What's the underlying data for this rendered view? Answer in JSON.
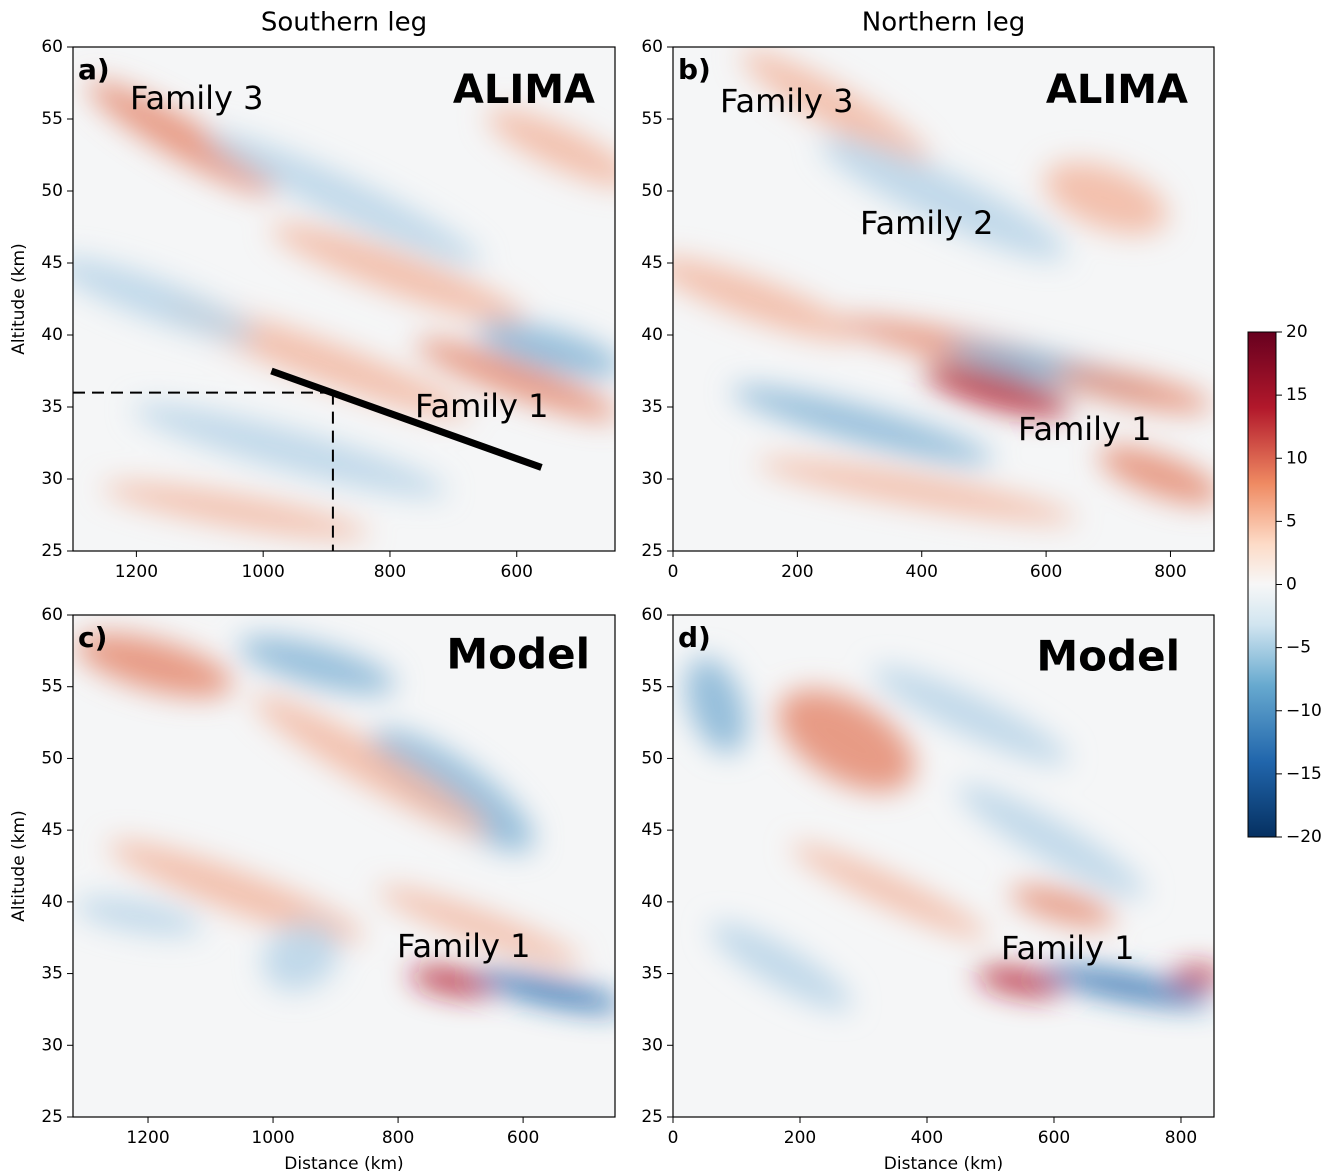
{
  "chart_data": [
    {
      "type": "heatmap",
      "title": "Southern leg",
      "panel_label": "a)",
      "label": "ALIMA",
      "annotations": [
        "Family 3",
        "Family 1"
      ],
      "xlim": [
        1300,
        445
      ],
      "xticks": [
        1200,
        1000,
        800,
        600
      ],
      "ylim": [
        25,
        60
      ],
      "yticks": [
        25,
        30,
        35,
        40,
        45,
        50,
        55,
        60
      ],
      "ylabel": "Altitude (km)",
      "line": {
        "x": [
          987,
          561
        ],
        "y": [
          37.5,
          30.8
        ]
      },
      "crosshair": {
        "x": 890,
        "y": 36
      }
    },
    {
      "type": "heatmap",
      "title": "Northern leg",
      "panel_label": "b)",
      "label": "ALIMA",
      "annotations": [
        "Family 3",
        "Family 2",
        "Family 1"
      ],
      "xlim": [
        0,
        870
      ],
      "xticks": [
        0,
        200,
        400,
        600,
        800
      ],
      "ylim": [
        25,
        60
      ],
      "yticks": [
        25,
        30,
        35,
        40,
        45,
        50,
        55,
        60
      ]
    },
    {
      "type": "heatmap",
      "panel_label": "c)",
      "label": "Model",
      "annotations": [
        "Family 1"
      ],
      "xlim": [
        1320,
        453
      ],
      "xticks": [
        1200,
        1000,
        800,
        600
      ],
      "xlabel": "Distance (km)",
      "ylim": [
        25,
        60
      ],
      "yticks": [
        25,
        30,
        35,
        40,
        45,
        50,
        55,
        60
      ],
      "ylabel": "Altitude (km)"
    },
    {
      "type": "heatmap",
      "panel_label": "d)",
      "label": "Model",
      "annotations": [
        "Family 1"
      ],
      "xlim": [
        0,
        852
      ],
      "xticks": [
        0,
        200,
        400,
        600,
        800
      ],
      "xlabel": "Distance (km)",
      "ylim": [
        25,
        60
      ],
      "yticks": [
        25,
        30,
        35,
        40,
        45,
        50,
        55,
        60
      ]
    },
    {
      "type": "colorbar",
      "clim": [
        -20,
        20
      ],
      "ticks": [
        20,
        15,
        10,
        5,
        0,
        {
          "value": -5,
          "label": "−5"
        },
        {
          "value": -10,
          "label": "−10"
        },
        {
          "value": -15,
          "label": "−15"
        },
        {
          "value": -20,
          "label": "−20"
        }
      ]
    }
  ]
}
